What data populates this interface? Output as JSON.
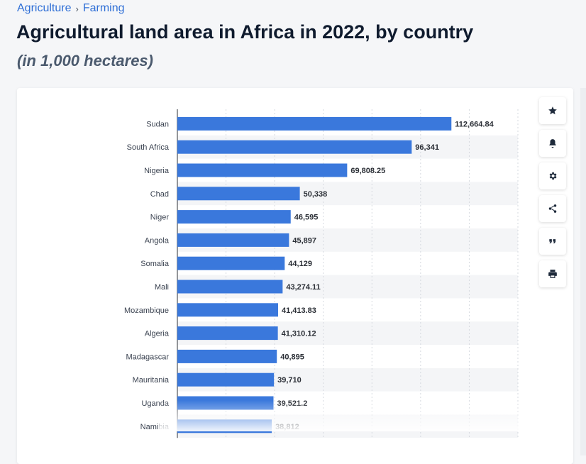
{
  "breadcrumb": {
    "items": [
      "Agriculture",
      "Farming"
    ],
    "separator": "›"
  },
  "header": {
    "title": "Agricultural land area in Africa in 2022, by country",
    "subtitle": "(in 1,000 hectares)"
  },
  "colors": {
    "bar": "#3a78dc",
    "link": "#2f6fd6",
    "title": "#0f1b2e",
    "band": "#f4f5f7"
  },
  "toolbar": {
    "icons": [
      "star-icon",
      "bell-icon",
      "gear-icon",
      "share-icon",
      "quote-icon",
      "print-icon"
    ]
  },
  "chart_data": {
    "type": "bar",
    "orientation": "horizontal",
    "categories": [
      "Sudan",
      "South Africa",
      "Nigeria",
      "Chad",
      "Niger",
      "Angola",
      "Somalia",
      "Mali",
      "Mozambique",
      "Algeria",
      "Madagascar",
      "Mauritania",
      "Uganda",
      "Namibia"
    ],
    "values": [
      112664.84,
      96341,
      69808.25,
      50338,
      46595,
      45897,
      44129,
      43274.11,
      41413.83,
      41310.12,
      40895,
      39710,
      39521.2,
      38812
    ],
    "value_labels": [
      "112,664.84",
      "96,341",
      "69,808.25",
      "50,338",
      "46,595",
      "45,897",
      "44,129",
      "43,274.11",
      "41,413.83",
      "41,310.12",
      "40,895",
      "39,710",
      "39,521.2",
      "38,812"
    ],
    "xlim": [
      0,
      140000
    ],
    "grid": true,
    "title": "Agricultural land area in Africa in 2022, by country",
    "xlabel": "",
    "ylabel": ""
  }
}
